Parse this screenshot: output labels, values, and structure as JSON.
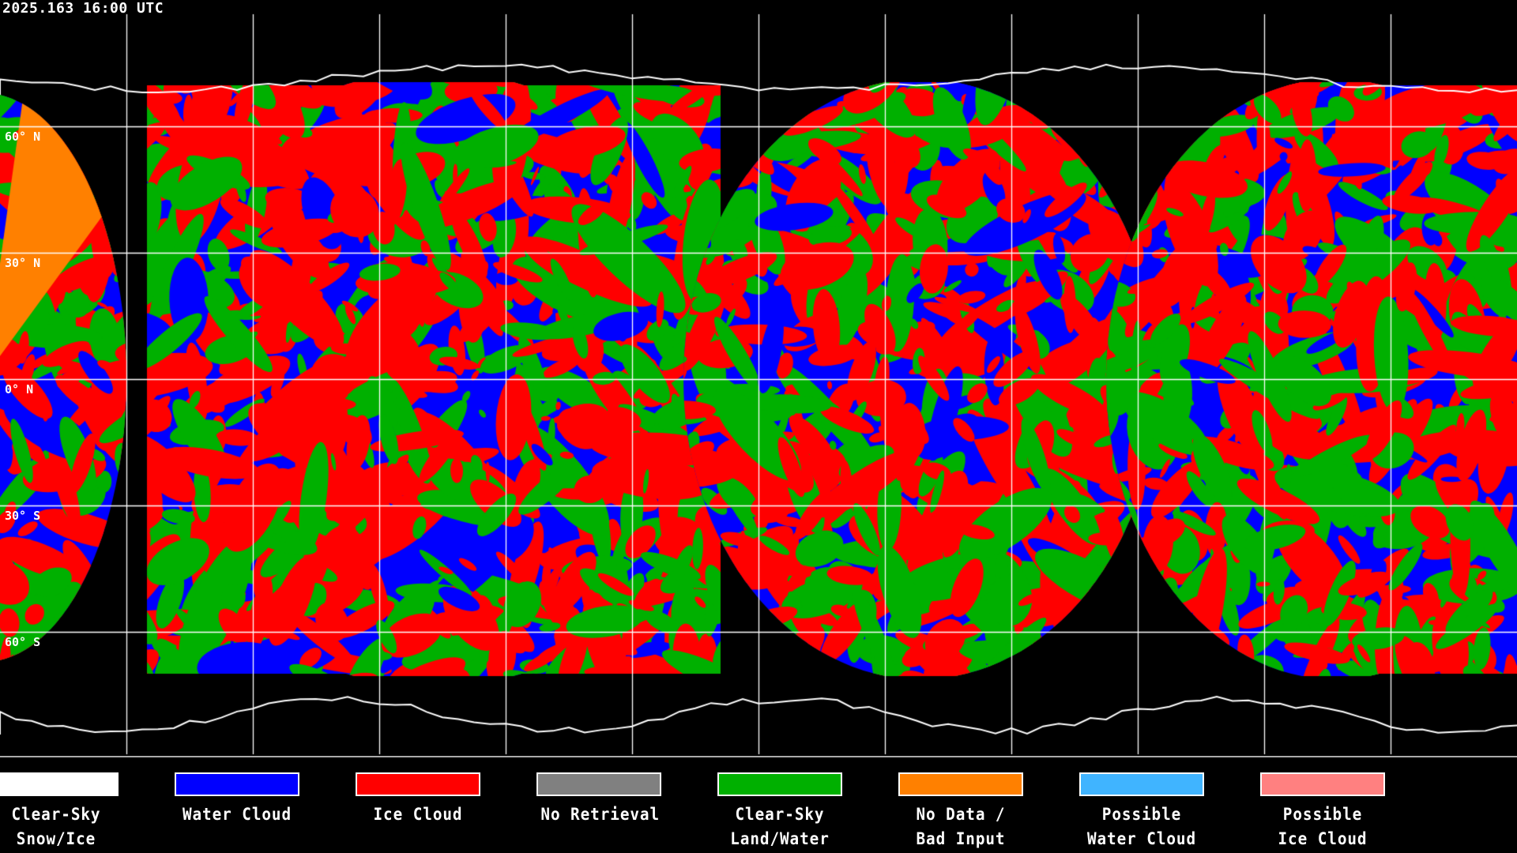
{
  "title": "2025.163 16:00 UTC",
  "latitude_labels": [
    "60° N",
    "30° N",
    "0° N",
    "30° S",
    "60° S"
  ],
  "legend": [
    {
      "line1": "Clear-Sky",
      "line2": "Snow/Ice",
      "color": "#ffffff"
    },
    {
      "line1": "Water Cloud",
      "line2": "",
      "color": "#0000ff"
    },
    {
      "line1": "Ice Cloud",
      "line2": "",
      "color": "#ff0000"
    },
    {
      "line1": "No Retrieval",
      "line2": "",
      "color": "#808080"
    },
    {
      "line1": "Clear-Sky",
      "line2": "Land/Water",
      "color": "#00b000"
    },
    {
      "line1": "No Data /",
      "line2": "Bad Input",
      "color": "#ff8000"
    },
    {
      "line1": "Possible",
      "line2": "Water Cloud",
      "color": "#40b4ff"
    },
    {
      "line1": "Possible",
      "line2": "Ice Cloud",
      "color": "#ff8080"
    }
  ]
}
